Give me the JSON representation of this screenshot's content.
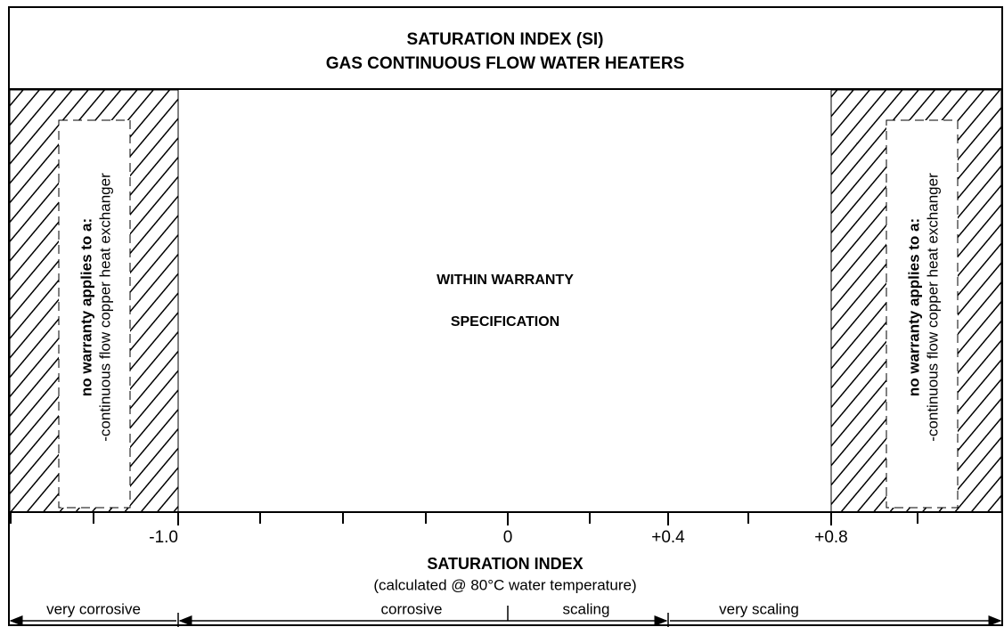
{
  "header": {
    "title": "SATURATION INDEX (SI)",
    "subtitle": "GAS CONTINUOUS FLOW WATER HEATERS"
  },
  "center_text": {
    "line1": "WITHIN WARRANTY",
    "line2": "SPECIFICATION"
  },
  "left_zone": {
    "line1": "no warranty applies to a:",
    "line2": "-continuous flow copper heat exchanger"
  },
  "right_zone": {
    "line1": "no warranty applies to a:",
    "line2": "-continuous flow copper heat exchanger"
  },
  "axis": {
    "ticks": [
      "-1.0",
      "0",
      "+0.4",
      "+0.8"
    ],
    "title": "SATURATION INDEX",
    "subtitle": "(calculated @ 80°C water temperature)"
  },
  "ranges": [
    "very corrosive",
    "corrosive",
    "scaling",
    "very scaling"
  ]
}
